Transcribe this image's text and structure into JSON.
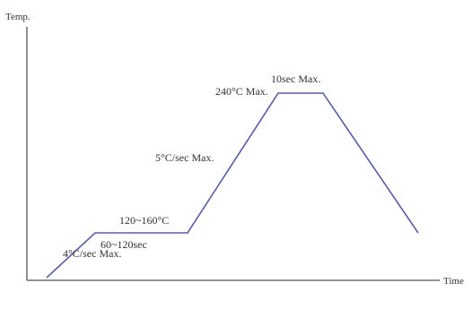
{
  "chart_data": {
    "type": "line",
    "title": "",
    "xlabel": "Time",
    "ylabel": "Temp.",
    "grid": false,
    "legend": "none",
    "line_color": "#5a5aa8",
    "axis_color": "#555555",
    "annotations": [
      {
        "id": "ramp-up-rate",
        "text": "4°C/sec Max."
      },
      {
        "id": "preheat-time",
        "text": "60~120sec"
      },
      {
        "id": "preheat-temp",
        "text": "120~160°C"
      },
      {
        "id": "ramp-to-peak-rate",
        "text": "5°C/sec Max."
      },
      {
        "id": "peak-temp",
        "text": "240°C Max."
      },
      {
        "id": "peak-time",
        "text": "10sec Max."
      }
    ]
  }
}
